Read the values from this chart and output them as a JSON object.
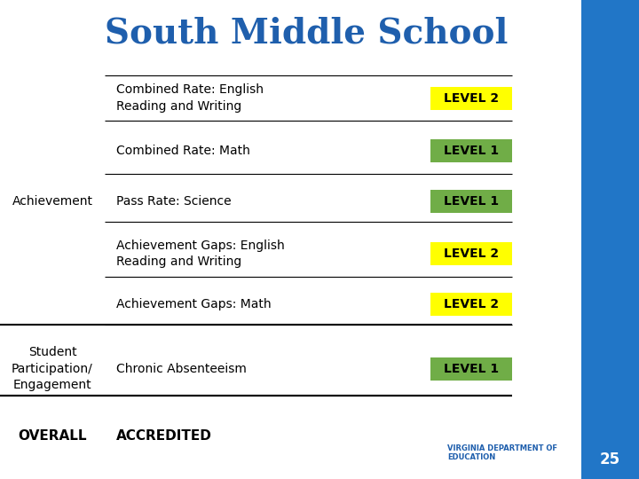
{
  "title": "South Middle School",
  "title_color": "#1F5FAD",
  "title_fontsize": 28,
  "background_color": "#FFFFFF",
  "right_panel_color": "#2176C7",
  "page_number": "25",
  "rows": [
    {
      "category": "",
      "metric": "Combined Rate: English\nReading and Writing",
      "level": "LEVEL 2",
      "level_color": "#FFFF00",
      "level_text_color": "#000000"
    },
    {
      "category": "",
      "metric": "Combined Rate: Math",
      "level": "LEVEL 1",
      "level_color": "#70AD47",
      "level_text_color": "#000000"
    },
    {
      "category": "Achievement",
      "metric": "Pass Rate: Science",
      "level": "LEVEL 1",
      "level_color": "#70AD47",
      "level_text_color": "#000000"
    },
    {
      "category": "",
      "metric": "Achievement Gaps: English\nReading and Writing",
      "level": "LEVEL 2",
      "level_color": "#FFFF00",
      "level_text_color": "#000000"
    },
    {
      "category": "",
      "metric": "Achievement Gaps: Math",
      "level": "LEVEL 2",
      "level_color": "#FFFF00",
      "level_text_color": "#000000"
    },
    {
      "category": "Student\nParticipation/\nEngagement",
      "metric": "Chronic Absenteeism",
      "level": "LEVEL 1",
      "level_color": "#70AD47",
      "level_text_color": "#000000"
    }
  ],
  "overall_label": "OVERALL",
  "overall_value": "ACCREDITED",
  "category_fontsize": 10,
  "metric_fontsize": 10,
  "level_fontsize": 10,
  "overall_fontsize": 11
}
